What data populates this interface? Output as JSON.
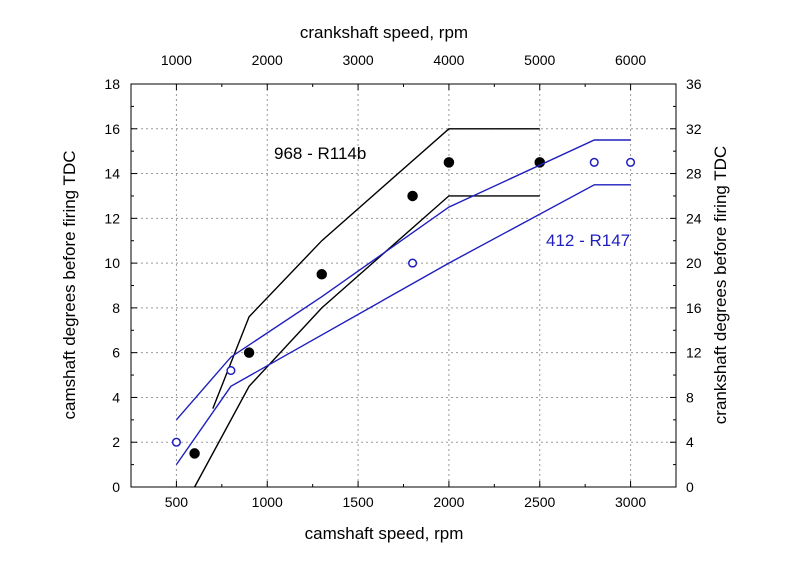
{
  "chart_data": {
    "type": "line",
    "x_bottom": {
      "label": "camshaft speed, rpm",
      "range": [
        250,
        3250
      ],
      "ticks": [
        500,
        1000,
        1500,
        2000,
        2500,
        3000
      ],
      "tick_labels": [
        "500",
        "1000",
        "1500",
        "2000",
        "2500",
        "3000"
      ]
    },
    "x_top": {
      "label": "crankshaft speed, rpm",
      "range": [
        500,
        6500
      ],
      "ticks": [
        1000,
        2000,
        3000,
        4000,
        5000,
        6000
      ],
      "tick_labels": [
        "1000",
        "2000",
        "3000",
        "4000",
        "5000",
        "6000"
      ]
    },
    "y_left": {
      "label": "camshaft degrees before firing TDC",
      "range": [
        0,
        18
      ],
      "ticks": [
        0,
        2,
        4,
        6,
        8,
        10,
        12,
        14,
        16,
        18
      ],
      "tick_labels": [
        "0",
        "2",
        "4",
        "6",
        "8",
        "10",
        "12",
        "14",
        "16",
        "18"
      ]
    },
    "y_right": {
      "label": "crankshaft degrees before firing TDC",
      "range": [
        0,
        36
      ],
      "ticks": [
        0,
        4,
        8,
        12,
        16,
        20,
        24,
        28,
        32,
        36
      ],
      "tick_labels": [
        "0",
        "4",
        "8",
        "12",
        "16",
        "20",
        "24",
        "28",
        "32",
        "36"
      ]
    },
    "grid": true,
    "annotations": [
      {
        "text": "968 - R114b",
        "color": "#000000"
      },
      {
        "text": "412 - R147",
        "color": "#1f1fbf"
      }
    ],
    "series": [
      {
        "group": "968 - R114b",
        "kind": "line",
        "color": "#000000",
        "points": [
          [
            700,
            3.5
          ],
          [
            900,
            7.6
          ],
          [
            1300,
            11.0
          ],
          [
            2000,
            16.0
          ],
          [
            2500,
            16.0
          ]
        ]
      },
      {
        "group": "968 - R114b",
        "kind": "line",
        "color": "#000000",
        "points": [
          [
            600,
            0
          ],
          [
            900,
            4.5
          ],
          [
            1300,
            8.0
          ],
          [
            2000,
            13.0
          ],
          [
            2500,
            13.0
          ]
        ]
      },
      {
        "group": "968 - R114b",
        "kind": "scatter",
        "marker": "filled-circle",
        "color": "#000000",
        "points": [
          [
            600,
            1.5
          ],
          [
            900,
            6.0
          ],
          [
            1300,
            9.5
          ],
          [
            1800,
            13.0
          ],
          [
            2000,
            14.5
          ],
          [
            2500,
            14.5
          ]
        ]
      },
      {
        "group": "412 - R147",
        "kind": "line",
        "color": "#1f1fbf",
        "points": [
          [
            500,
            3.0
          ],
          [
            800,
            5.8
          ],
          [
            1300,
            8.5
          ],
          [
            2000,
            12.5
          ],
          [
            2800,
            15.5
          ],
          [
            3000,
            15.5
          ]
        ]
      },
      {
        "group": "412 - R147",
        "kind": "line",
        "color": "#1f1fbf",
        "points": [
          [
            500,
            1.0
          ],
          [
            800,
            4.5
          ],
          [
            2000,
            10.0
          ],
          [
            2800,
            13.5
          ],
          [
            3000,
            13.5
          ]
        ]
      },
      {
        "group": "412 - R147",
        "kind": "scatter",
        "marker": "open-circle",
        "color": "#1f1fbf",
        "points": [
          [
            500,
            2.0
          ],
          [
            800,
            5.2
          ],
          [
            1800,
            10.0
          ],
          [
            2800,
            14.5
          ],
          [
            3000,
            14.5
          ]
        ]
      }
    ]
  }
}
